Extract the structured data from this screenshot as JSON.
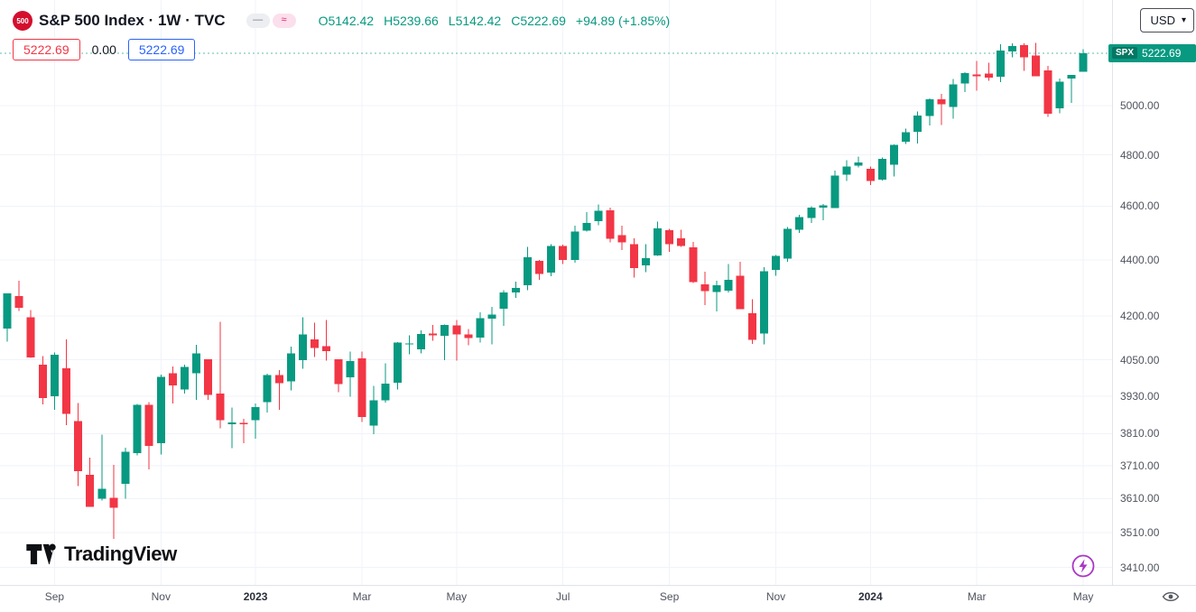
{
  "header": {
    "badge": "500",
    "title": "S&P 500 Index · 1W · TVC",
    "ohlc": {
      "open": "O5142.42",
      "high": "H5239.66",
      "low": "L5142.42",
      "close": "C5222.69",
      "change": "+94.89 (+1.85%)"
    },
    "bid": "5222.69",
    "spread": "0.00",
    "ask": "5222.69"
  },
  "toolbar": {
    "currency_label": "USD"
  },
  "icons": {
    "minus": "—",
    "wave": "≈",
    "chevron_down": "▾"
  },
  "price_scale": {
    "last_symbol": "SPX",
    "last_price": "5222.69"
  },
  "watermark_logo": {
    "text": "TradingView"
  },
  "colors": {
    "up": "#089981",
    "down": "#f23645",
    "grid": "#f0f3fa",
    "axis_text": "#50535e",
    "accent_red": "#f23645",
    "accent_blue": "#2962ff",
    "last_tag_bg": "#089981",
    "flash_purple": "#ab36c6"
  },
  "chart_data": {
    "type": "candlestick",
    "title": "S&P 500 Index, 1 week, TVC",
    "symbol": "SPX",
    "interval": "1W",
    "currency": "USD",
    "scale": "log",
    "grid": true,
    "last_close": 5222.69,
    "y_ticks": [
      5000,
      4800,
      4600,
      4400,
      4200,
      4050,
      3930,
      3810,
      3710,
      3610,
      3510,
      3410
    ],
    "x_labels": [
      {
        "text": "Sep",
        "week": 4,
        "year": false
      },
      {
        "text": "Nov",
        "week": 13,
        "year": false
      },
      {
        "text": "2023",
        "week": 21,
        "year": true
      },
      {
        "text": "Mar",
        "week": 30,
        "year": false
      },
      {
        "text": "May",
        "week": 38,
        "year": false
      },
      {
        "text": "Jul",
        "week": 47,
        "year": false
      },
      {
        "text": "Sep",
        "week": 56,
        "year": false
      },
      {
        "text": "Nov",
        "week": 65,
        "year": false
      },
      {
        "text": "2024",
        "week": 73,
        "year": true
      },
      {
        "text": "Mar",
        "week": 82,
        "year": false
      },
      {
        "text": "May",
        "week": 91,
        "year": false
      }
    ],
    "ohlc_weekly": [
      [
        4156,
        4280,
        4112,
        4280
      ],
      [
        4269,
        4325,
        4218,
        4228
      ],
      [
        4195,
        4221,
        4057,
        4058
      ],
      [
        4034,
        4062,
        3903,
        3924
      ],
      [
        3930,
        4075,
        3886,
        4067
      ],
      [
        4022,
        4119,
        3837,
        3873
      ],
      [
        3849,
        3907,
        3647,
        3693
      ],
      [
        3682,
        3735,
        3585,
        3586
      ],
      [
        3609,
        3807,
        3604,
        3640
      ],
      [
        3612,
        3712,
        3491,
        3583
      ],
      [
        3655,
        3765,
        3610,
        3753
      ],
      [
        3749,
        3905,
        3741,
        3901
      ],
      [
        3901,
        3911,
        3698,
        3771
      ],
      [
        3780,
        4001,
        3744,
        3993
      ],
      [
        4005,
        4028,
        3906,
        3965
      ],
      [
        3952,
        4034,
        3938,
        4026
      ],
      [
        4005,
        4100,
        3918,
        4072
      ],
      [
        4052,
        4052,
        3918,
        3934
      ],
      [
        3939,
        4180,
        3827,
        3852
      ],
      [
        3839,
        3893,
        3764,
        3845
      ],
      [
        3843,
        3857,
        3780,
        3840
      ],
      [
        3853,
        3906,
        3794,
        3895
      ],
      [
        3910,
        4003,
        3877,
        3999
      ],
      [
        3999,
        4015,
        3885,
        3973
      ],
      [
        3978,
        4094,
        3949,
        4071
      ],
      [
        4049,
        4195,
        4020,
        4136
      ],
      [
        4119,
        4176,
        4060,
        4090
      ],
      [
        4096,
        4186,
        4047,
        4079
      ],
      [
        4052,
        4052,
        3943,
        3970
      ],
      [
        3992,
        4078,
        3928,
        4046
      ],
      [
        4055,
        4078,
        3846,
        3862
      ],
      [
        3835,
        3964,
        3808,
        3917
      ],
      [
        3917,
        4039,
        3909,
        3971
      ],
      [
        3974,
        4110,
        3951,
        4109
      ],
      [
        4103,
        4133,
        4069,
        4105
      ],
      [
        4085,
        4150,
        4072,
        4138
      ],
      [
        4140,
        4169,
        4114,
        4133
      ],
      [
        4132,
        4170,
        4049,
        4169
      ],
      [
        4167,
        4186,
        4048,
        4136
      ],
      [
        4136,
        4154,
        4099,
        4124
      ],
      [
        4126,
        4212,
        4109,
        4192
      ],
      [
        4190,
        4231,
        4103,
        4205
      ],
      [
        4226,
        4290,
        4166,
        4282
      ],
      [
        4282,
        4322,
        4263,
        4299
      ],
      [
        4308,
        4448,
        4290,
        4410
      ],
      [
        4396,
        4400,
        4328,
        4348
      ],
      [
        4354,
        4458,
        4341,
        4450
      ],
      [
        4450,
        4456,
        4385,
        4399
      ],
      [
        4399,
        4527,
        4389,
        4505
      ],
      [
        4508,
        4578,
        4504,
        4536
      ],
      [
        4543,
        4607,
        4528,
        4582
      ],
      [
        4584,
        4594,
        4464,
        4478
      ],
      [
        4491,
        4527,
        4436,
        4464
      ],
      [
        4458,
        4479,
        4335,
        4370
      ],
      [
        4380,
        4458,
        4356,
        4406
      ],
      [
        4416,
        4541,
        4414,
        4516
      ],
      [
        4510,
        4514,
        4430,
        4457
      ],
      [
        4480,
        4511,
        4447,
        4450
      ],
      [
        4445,
        4466,
        4316,
        4320
      ],
      [
        4312,
        4357,
        4238,
        4288
      ],
      [
        4284,
        4324,
        4216,
        4308
      ],
      [
        4289,
        4385,
        4283,
        4328
      ],
      [
        4342,
        4393,
        4224,
        4224
      ],
      [
        4210,
        4259,
        4104,
        4117
      ],
      [
        4139,
        4373,
        4103,
        4358
      ],
      [
        4364,
        4418,
        4343,
        4415
      ],
      [
        4405,
        4521,
        4393,
        4514
      ],
      [
        4511,
        4568,
        4499,
        4559
      ],
      [
        4555,
        4599,
        4537,
        4594
      ],
      [
        4594,
        4609,
        4546,
        4604
      ],
      [
        4593,
        4738,
        4593,
        4719
      ],
      [
        4721,
        4778,
        4698,
        4754
      ],
      [
        4758,
        4793,
        4751,
        4770
      ],
      [
        4745,
        4754,
        4682,
        4697
      ],
      [
        4703,
        4790,
        4699,
        4784
      ],
      [
        4760,
        4842,
        4714,
        4840
      ],
      [
        4853,
        4906,
        4844,
        4891
      ],
      [
        4893,
        4975,
        4846,
        4959
      ],
      [
        4957,
        5030,
        4918,
        5027
      ],
      [
        5026,
        5048,
        4920,
        5006
      ],
      [
        4995,
        5111,
        4946,
        5089
      ],
      [
        5093,
        5140,
        5057,
        5137
      ],
      [
        5131,
        5189,
        5062,
        5124
      ],
      [
        5134,
        5180,
        5104,
        5117
      ],
      [
        5122,
        5261,
        5098,
        5234
      ],
      [
        5230,
        5264,
        5204,
        5254
      ],
      [
        5258,
        5264,
        5146,
        5204
      ],
      [
        5212,
        5266,
        5138,
        5123
      ],
      [
        5149,
        5168,
        4953,
        4967
      ],
      [
        4988,
        5114,
        4969,
        5100
      ],
      [
        5114,
        5123,
        5011,
        5128
      ],
      [
        5142.42,
        5239.66,
        5142.42,
        5222.69
      ]
    ]
  }
}
